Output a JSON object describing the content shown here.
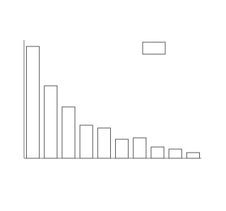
{
  "chart_data": {
    "type": "bar",
    "categories": [
      null,
      null,
      null,
      null,
      null,
      null,
      null,
      null,
      null,
      null
    ],
    "values": [
      159,
      103,
      73,
      47,
      43,
      27,
      29,
      16,
      13,
      8
    ],
    "color": "#ffffff",
    "edgecolor": "#555555",
    "ylim": [
      0,
      168
    ],
    "legend": "upper right"
  }
}
